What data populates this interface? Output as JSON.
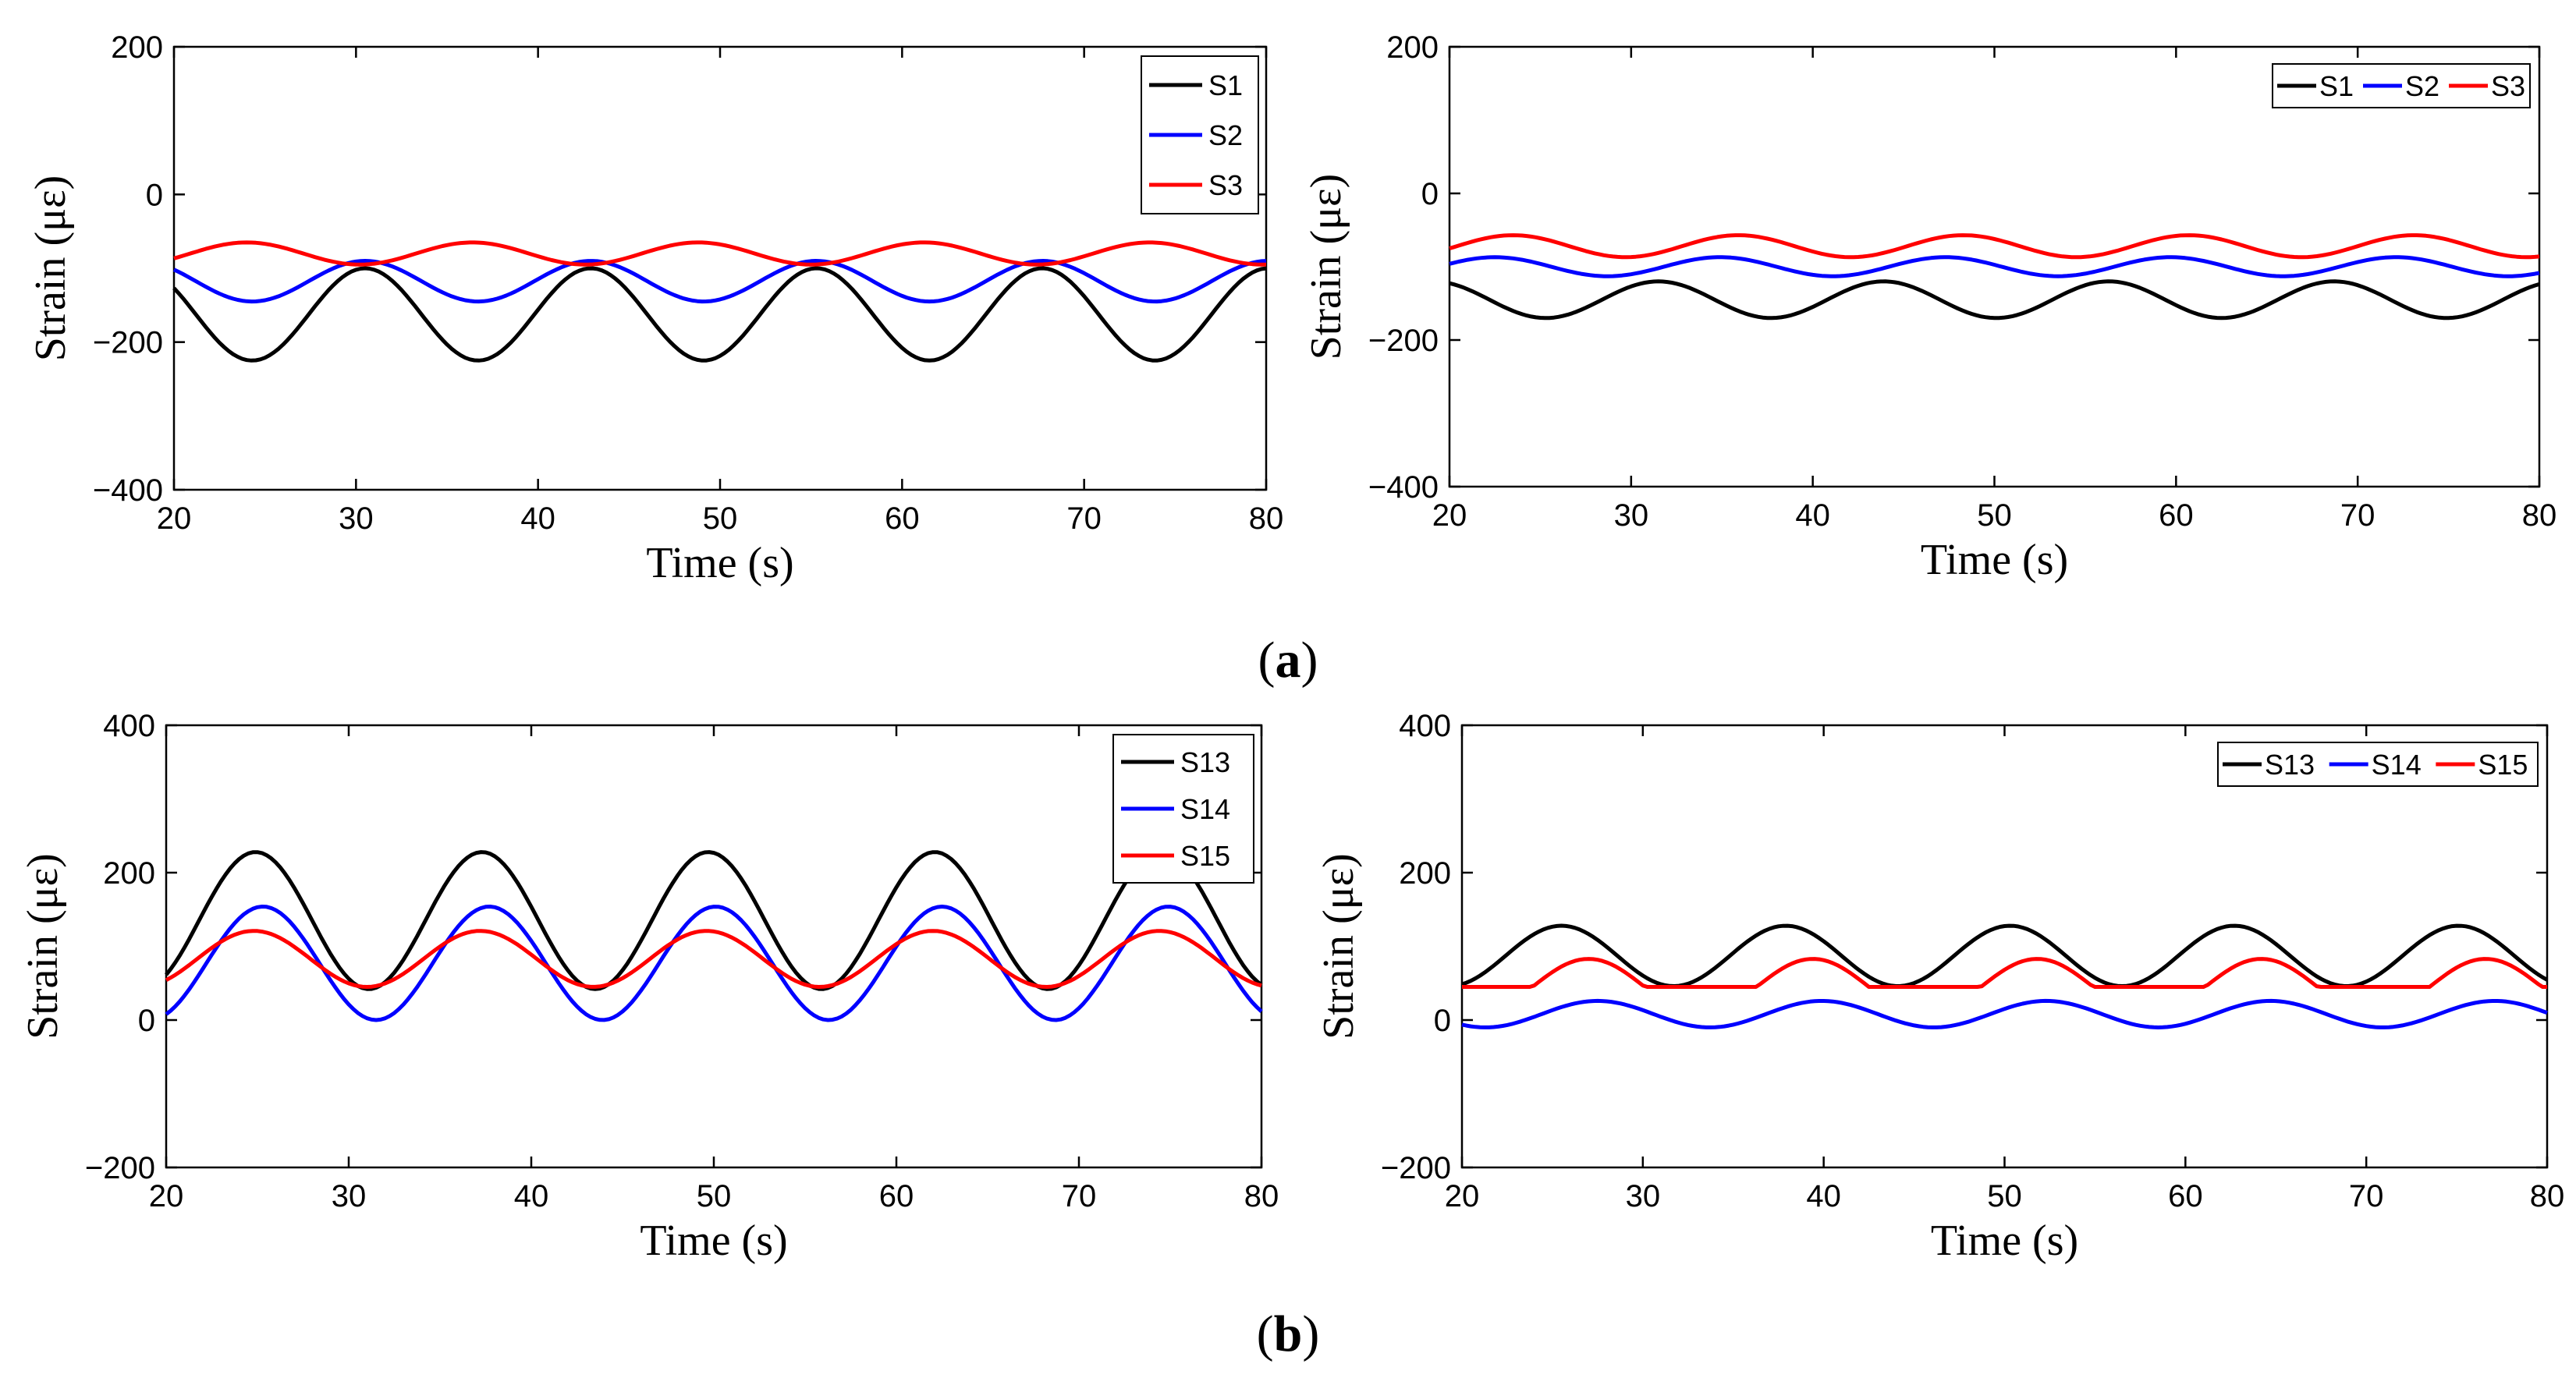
{
  "panels": [
    {
      "label": "a"
    },
    {
      "label": "b"
    }
  ],
  "chart_data": [
    {
      "type": "line",
      "panel": "a",
      "position": "top-left",
      "xlabel": "Time (s)",
      "ylabel": "Strain (με)",
      "xlim": [
        20,
        80
      ],
      "ylim": [
        -400,
        200
      ],
      "xticks": [
        20,
        30,
        40,
        50,
        60,
        70,
        80
      ],
      "yticks": [
        -400,
        -200,
        0,
        200
      ],
      "period": 12.4,
      "samples": 241,
      "legend": {
        "placement": "top-right",
        "orientation": "vertical"
      },
      "series": [
        {
          "name": "S1",
          "color": "#000000",
          "center": -162.5,
          "amplitude": 62.5,
          "peak_time": 30.5,
          "phase_shape": "cosine"
        },
        {
          "name": "S2",
          "color": "#0000ff",
          "center": -117.5,
          "amplitude": 27.5,
          "peak_time": 30.5,
          "phase_shape": "cosine"
        },
        {
          "name": "S3",
          "color": "#ff0000",
          "center": -80,
          "amplitude": 15,
          "peak_time": 24.0,
          "phase_shape": "cosine"
        }
      ]
    },
    {
      "type": "line",
      "panel": "a",
      "position": "top-right",
      "xlabel": "Time (s)",
      "ylabel": "Strain (με)",
      "xlim": [
        20,
        80
      ],
      "ylim": [
        -400,
        200
      ],
      "xticks": [
        20,
        30,
        40,
        50,
        60,
        70,
        80
      ],
      "yticks": [
        -400,
        -200,
        0,
        200
      ],
      "period": 12.4,
      "samples": 241,
      "legend": {
        "placement": "top-right",
        "orientation": "horizontal"
      },
      "series": [
        {
          "name": "S1",
          "color": "#000000",
          "center": -145,
          "amplitude": 25,
          "peak_time": 31.5,
          "phase_shape": "cosine"
        },
        {
          "name": "S2",
          "color": "#0000ff",
          "center": -100,
          "amplitude": 13,
          "peak_time": 22.5,
          "phase_shape": "cosine"
        },
        {
          "name": "S3",
          "color": "#ff0000",
          "center": -72,
          "amplitude": 15,
          "peak_time": 23.5,
          "phase_shape": "cosine"
        }
      ]
    },
    {
      "type": "line",
      "panel": "b",
      "position": "bottom-left",
      "xlabel": "Time (s)",
      "ylabel": "Strain (με)",
      "xlim": [
        20,
        80
      ],
      "ylim": [
        -200,
        400
      ],
      "xticks": [
        20,
        30,
        40,
        50,
        60,
        70,
        80
      ],
      "yticks": [
        -200,
        0,
        200,
        400
      ],
      "period": 12.4,
      "samples": 241,
      "legend": {
        "placement": "top-right",
        "orientation": "vertical"
      },
      "series": [
        {
          "name": "S13",
          "color": "#000000",
          "center": 135,
          "amplitude": 93,
          "peak_time": 24.9,
          "phase_shape": "cosine"
        },
        {
          "name": "S14",
          "color": "#0000ff",
          "center": 77,
          "amplitude": 77,
          "peak_time": 25.3,
          "phase_shape": "cosine"
        },
        {
          "name": "S15",
          "color": "#ff0000",
          "center": 83,
          "amplitude": 38,
          "peak_time": 24.8,
          "phase_shape": "cosine"
        }
      ]
    },
    {
      "type": "line",
      "panel": "b",
      "position": "bottom-right",
      "xlabel": "Time (s)",
      "ylabel": "Strain (με)",
      "xlim": [
        20,
        80
      ],
      "ylim": [
        -200,
        400
      ],
      "xticks": [
        20,
        30,
        40,
        50,
        60,
        70,
        80
      ],
      "yticks": [
        -200,
        0,
        200,
        400
      ],
      "period": 12.4,
      "samples": 241,
      "legend": {
        "placement": "top-right",
        "orientation": "horizontal"
      },
      "series": [
        {
          "name": "S13",
          "color": "#000000",
          "center": 87,
          "amplitude": 41,
          "peak_time": 25.5,
          "phase_shape": "cosine"
        },
        {
          "name": "S14",
          "color": "#0000ff",
          "center": 8,
          "amplitude": 18,
          "peak_time": 27.5,
          "phase_shape": "cosine"
        },
        {
          "name": "S15",
          "color": "#ff0000",
          "center": 45,
          "amplitude": 38,
          "peak_time": 27.0,
          "phase_shape": "bump"
        }
      ]
    }
  ]
}
